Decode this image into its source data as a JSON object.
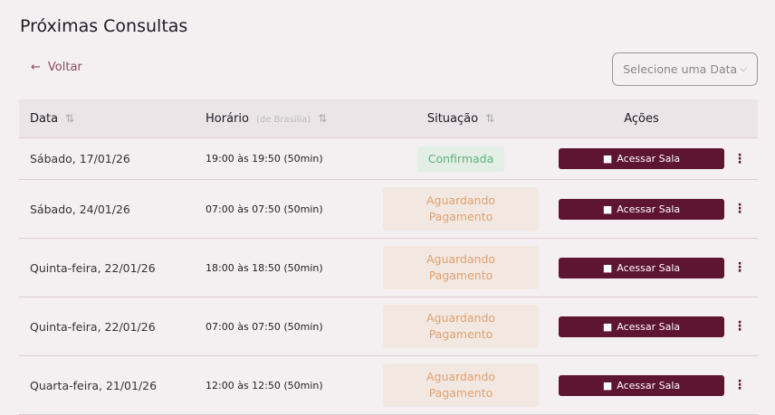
{
  "page": {
    "title": "Próximas Consultas",
    "back_label": "Voltar",
    "date_select_placeholder": "Selecione uma Data"
  },
  "table": {
    "headers": {
      "date": "Data",
      "time": "Horário",
      "time_note": "(de Brasília)",
      "status": "Situação",
      "actions": "Ações"
    },
    "rows": [
      {
        "date": "Sábado, 17/01/26",
        "time": "19:00 às 19:50 (50min)",
        "status": "Confirmada",
        "status_type": "confirmed",
        "action": "Acessar Sala"
      },
      {
        "date": "Sábado, 24/01/26",
        "time": "07:00 às 07:50 (50min)",
        "status": "Aguardando Pagamento",
        "status_type": "pending",
        "action": "Acessar Sala"
      },
      {
        "date": "Quinta-feira, 22/01/26",
        "time": "18:00 às 18:50 (50min)",
        "status": "Aguardando Pagamento",
        "status_type": "pending",
        "action": "Acessar Sala"
      },
      {
        "date": "Quinta-feira, 22/01/26",
        "time": "07:00 às 07:50 (50min)",
        "status": "Aguardando Pagamento",
        "status_type": "pending",
        "action": "Acessar Sala"
      },
      {
        "date": "Quarta-feira, 21/01/26",
        "time": "12:00 às 12:50 (50min)",
        "status": "Aguardando Pagamento",
        "status_type": "pending",
        "action": "Acessar Sala"
      }
    ]
  },
  "colors": {
    "primary": "#5e1530",
    "confirmed": "#5cb37a",
    "pending": "#e0a070"
  }
}
